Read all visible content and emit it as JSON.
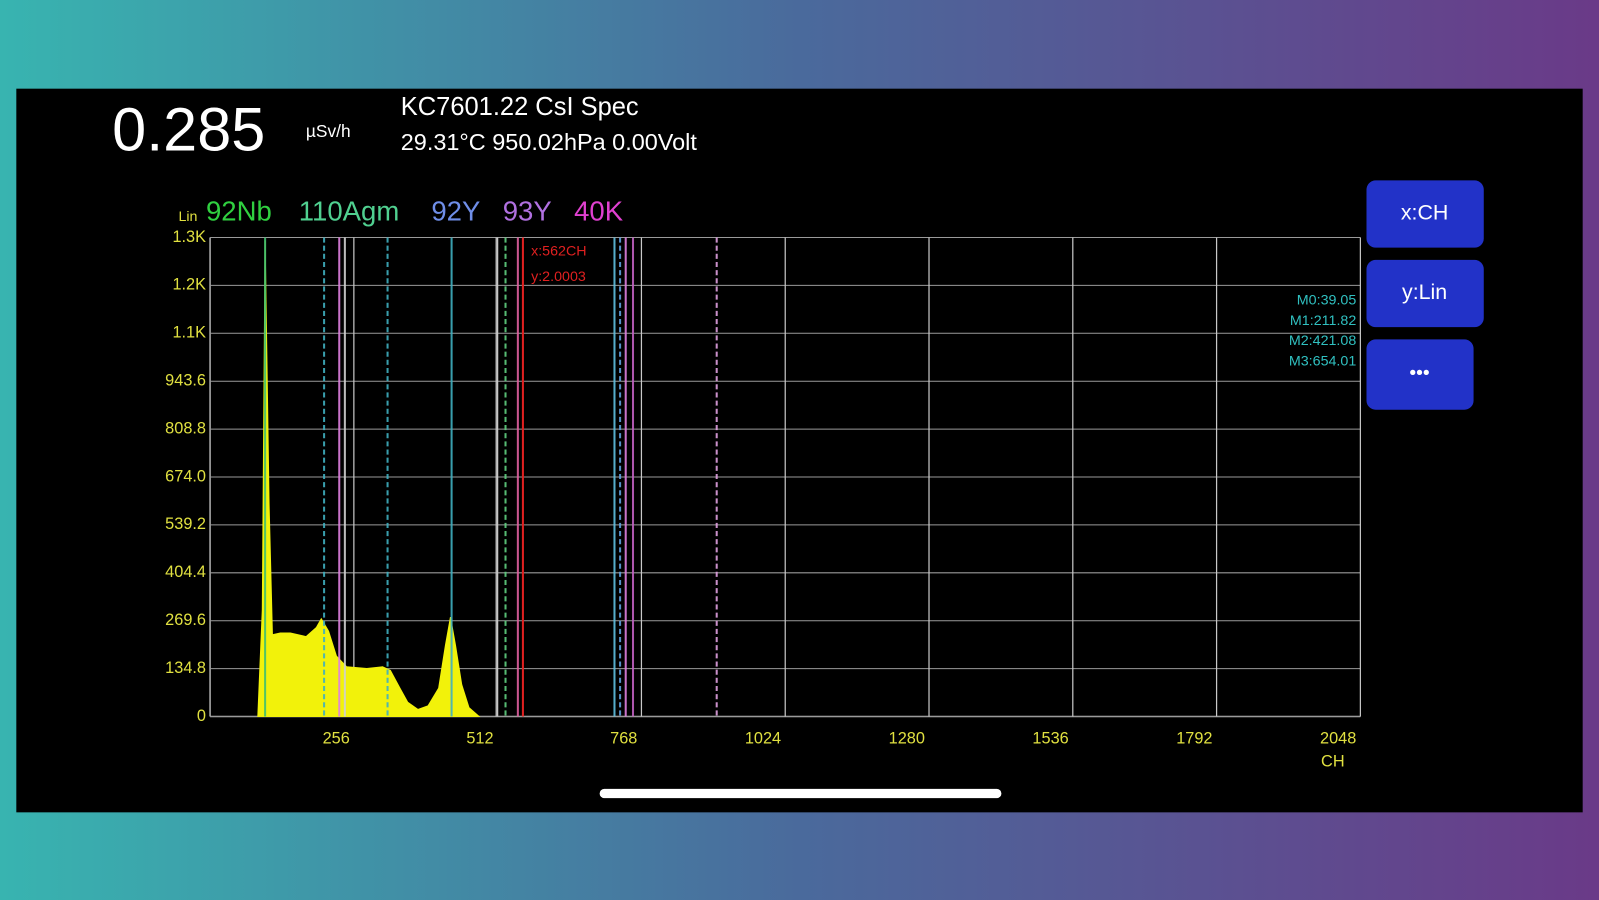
{
  "header": {
    "dose_rate": "0.285",
    "dose_unit": "µSv/h",
    "device": "KC7601.22 CsI Spec",
    "status": "29.31°C 950.02hPa 0.00Volt"
  },
  "buttons": [
    "x:CH",
    "y:Lin",
    "•••"
  ],
  "chart_data": {
    "type": "area",
    "color": "#f2f20a",
    "legend_label": "Lin",
    "legend": [
      {
        "name": "92Nb",
        "color": "#30d040"
      },
      {
        "name": "110Agm",
        "color": "#50d090"
      },
      {
        "name": "92Y",
        "color": "#6f8ee8"
      },
      {
        "name": "93Y",
        "color": "#b070e0"
      },
      {
        "name": "40K",
        "color": "#e040d0"
      }
    ],
    "x_label": "CH",
    "x": [
      85,
      93,
      98,
      105,
      111,
      125,
      143,
      171,
      189,
      198,
      211,
      225,
      243,
      279,
      307,
      321,
      338,
      352,
      370,
      388,
      407,
      419,
      428,
      437,
      448,
      461,
      479
    ],
    "values": [
      0,
      300,
      1340,
      600,
      230,
      235,
      235,
      225,
      250,
      275,
      240,
      170,
      140,
      135,
      140,
      130,
      80,
      40,
      20,
      30,
      80,
      200,
      280,
      200,
      90,
      25,
      0
    ],
    "xlim": [
      0,
      2048
    ],
    "xticks": [
      256,
      512,
      768,
      1024,
      1280,
      1536,
      1792,
      2048
    ],
    "ylim": [
      0,
      1348
    ],
    "yticks": [
      0,
      134.8,
      269.6,
      404.4,
      539.2,
      {
        "value": 674,
        "label": "674.0"
      },
      808.8,
      943.6,
      {
        "value": 1078.4,
        "label": "1.1K"
      },
      {
        "value": 1213.2,
        "label": "1.2K"
      },
      {
        "value": 1348,
        "label": "1.3K"
      }
    ],
    "grid": true,
    "marker_lines": [
      {
        "x": 98,
        "color": "#40c070"
      },
      {
        "x": 203,
        "color": "#40b0c0"
      },
      {
        "x": 230,
        "color": "#e080e0"
      },
      {
        "x": 240,
        "color": "#d0d0d0"
      },
      {
        "x": 316,
        "color": "#40b0c0"
      },
      {
        "x": 430,
        "color": "#40b0c0"
      },
      {
        "x": 510,
        "color": "#c8c8c8"
      },
      {
        "x": 526,
        "color": "#60d080"
      },
      {
        "x": 548,
        "color": "#e060a0"
      },
      {
        "x": 720,
        "color": "#60c0e0"
      },
      {
        "x": 730,
        "color": "#60a0e0"
      },
      {
        "x": 740,
        "color": "#e080e0"
      },
      {
        "x": 753,
        "color": "#c060c0"
      },
      {
        "x": 902,
        "color": "#e0a0e0"
      }
    ],
    "cursor": {
      "x": 557,
      "label_x": "x:562CH",
      "label_y": "y:2.0003",
      "color": "#e02020"
    },
    "peak_labels": [
      "M0:39.05",
      "M1:211.82",
      "M2:421.08",
      "M3:654.01"
    ]
  }
}
